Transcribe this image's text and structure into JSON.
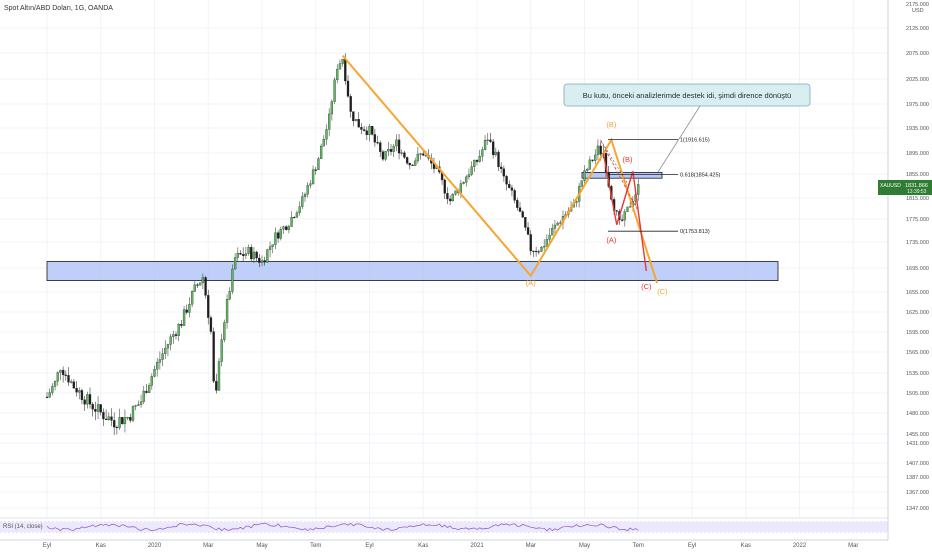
{
  "header": {
    "title": "Spot Altın/ABD Doları, 1G, OANDA"
  },
  "axis": {
    "currency": "USD",
    "top_label": "2175.000"
  },
  "price_tag": {
    "symbol": "XAUUSD",
    "value": "1831.866",
    "countdown": "13:39:53"
  },
  "annotation": {
    "text": "Bu kutu, önceki analizlerimde destek idi, şimdi dirence dönüştü"
  },
  "indicator": {
    "label": "RSI (14, close)"
  },
  "colors": {
    "up": "#26a69a",
    "down": "#ef5350",
    "wave_orange": "#f7a531",
    "wave_red": "#e53935",
    "box_fill": "#a9bff7",
    "price_green": "#2e7d32"
  },
  "chart_data": {
    "type": "candlestick",
    "title": "Spot Altın/ABD Doları, 1G, OANDA",
    "ylabel": "USD",
    "ylim": [
      1330,
      2175
    ],
    "y_ticks": [
      "2175.000",
      "2125.000",
      "2075.000",
      "2025.000",
      "1975.000",
      "1935.000",
      "1895.000",
      "1855.000",
      "1815.000",
      "1775.000",
      "1735.000",
      "1695.000",
      "1655.000",
      "1625.000",
      "1595.000",
      "1565.000",
      "1535.000",
      "1505.000",
      "1480.000",
      "1455.000",
      "1431.000",
      "1407.000",
      "1387.000",
      "1367.000",
      "1347.000"
    ],
    "x_ticks": [
      "Eyl",
      "Kas",
      "2020",
      "Mar",
      "May",
      "Tem",
      "Eyl",
      "Kas",
      "2021",
      "Mar",
      "May",
      "Tem",
      "Eyl",
      "Kas",
      "2022",
      "Mar"
    ],
    "price_path": [
      {
        "m": 0,
        "v": 1500
      },
      {
        "m": 0.3,
        "v": 1520
      },
      {
        "m": 0.5,
        "v": 1545
      },
      {
        "m": 1.0,
        "v": 1515
      },
      {
        "m": 1.5,
        "v": 1495
      },
      {
        "m": 2.0,
        "v": 1480
      },
      {
        "m": 2.5,
        "v": 1470
      },
      {
        "m": 3.0,
        "v": 1475
      },
      {
        "m": 3.5,
        "v": 1495
      },
      {
        "m": 4.0,
        "v": 1540
      },
      {
        "m": 4.6,
        "v": 1585
      },
      {
        "m": 5.0,
        "v": 1610
      },
      {
        "m": 5.5,
        "v": 1660
      },
      {
        "m": 5.8,
        "v": 1680
      },
      {
        "m": 6.1,
        "v": 1595
      },
      {
        "m": 6.25,
        "v": 1480
      },
      {
        "m": 6.5,
        "v": 1590
      },
      {
        "m": 6.8,
        "v": 1660
      },
      {
        "m": 7.0,
        "v": 1710
      },
      {
        "m": 7.5,
        "v": 1720
      },
      {
        "m": 8.0,
        "v": 1705
      },
      {
        "m": 8.5,
        "v": 1745
      },
      {
        "m": 9.0,
        "v": 1770
      },
      {
        "m": 9.5,
        "v": 1810
      },
      {
        "m": 10.0,
        "v": 1870
      },
      {
        "m": 10.5,
        "v": 1950
      },
      {
        "m": 10.8,
        "v": 2050
      },
      {
        "m": 11.0,
        "v": 2065
      },
      {
        "m": 11.3,
        "v": 1960
      },
      {
        "m": 11.6,
        "v": 1940
      },
      {
        "m": 12.0,
        "v": 1930
      },
      {
        "m": 12.5,
        "v": 1885
      },
      {
        "m": 13.0,
        "v": 1910
      },
      {
        "m": 13.5,
        "v": 1875
      },
      {
        "m": 14.0,
        "v": 1895
      },
      {
        "m": 14.5,
        "v": 1860
      },
      {
        "m": 15.0,
        "v": 1810
      },
      {
        "m": 15.5,
        "v": 1845
      },
      {
        "m": 16.0,
        "v": 1880
      },
      {
        "m": 16.4,
        "v": 1920
      },
      {
        "m": 16.7,
        "v": 1890
      },
      {
        "m": 17.0,
        "v": 1845
      },
      {
        "m": 17.3,
        "v": 1820
      },
      {
        "m": 17.6,
        "v": 1785
      },
      {
        "m": 17.9,
        "v": 1740
      },
      {
        "m": 18.0,
        "v": 1725
      },
      {
        "m": 18.4,
        "v": 1725
      },
      {
        "m": 18.8,
        "v": 1755
      },
      {
        "m": 19.2,
        "v": 1780
      },
      {
        "m": 19.6,
        "v": 1800
      },
      {
        "m": 19.9,
        "v": 1845
      },
      {
        "m": 20.2,
        "v": 1875
      },
      {
        "m": 20.5,
        "v": 1900
      },
      {
        "m": 20.7,
        "v": 1895
      },
      {
        "m": 20.9,
        "v": 1840
      },
      {
        "m": 21.1,
        "v": 1800
      },
      {
        "m": 21.3,
        "v": 1765
      },
      {
        "m": 21.5,
        "v": 1780
      },
      {
        "m": 21.8,
        "v": 1815
      },
      {
        "m": 22.0,
        "v": 1832
      }
    ],
    "fib_levels": [
      {
        "label": "1(1916.615)",
        "value": 1916.615
      },
      {
        "label": "0.618(1854.425)",
        "value": 1854.425
      },
      {
        "label": "0(1753.813)",
        "value": 1753.813
      }
    ],
    "zones": [
      {
        "name": "support-resistance-zone",
        "from": 1674,
        "to": 1705
      },
      {
        "name": "small-resistance-zone",
        "from": 1848,
        "to": 1858
      }
    ],
    "wave_labels": [
      {
        "text": "(A)",
        "color": "orange",
        "m": 18.0,
        "v": 1666
      },
      {
        "text": "(B)",
        "color": "orange",
        "m": 21.0,
        "v": 1937
      },
      {
        "text": "(C)",
        "color": "orange",
        "m": 22.9,
        "v": 1652
      },
      {
        "text": "(A)",
        "color": "red",
        "m": 21.0,
        "v": 1734
      },
      {
        "text": "(B)",
        "color": "red",
        "m": 21.6,
        "v": 1878
      },
      {
        "text": "(C)",
        "color": "red",
        "m": 22.3,
        "v": 1660
      }
    ]
  }
}
